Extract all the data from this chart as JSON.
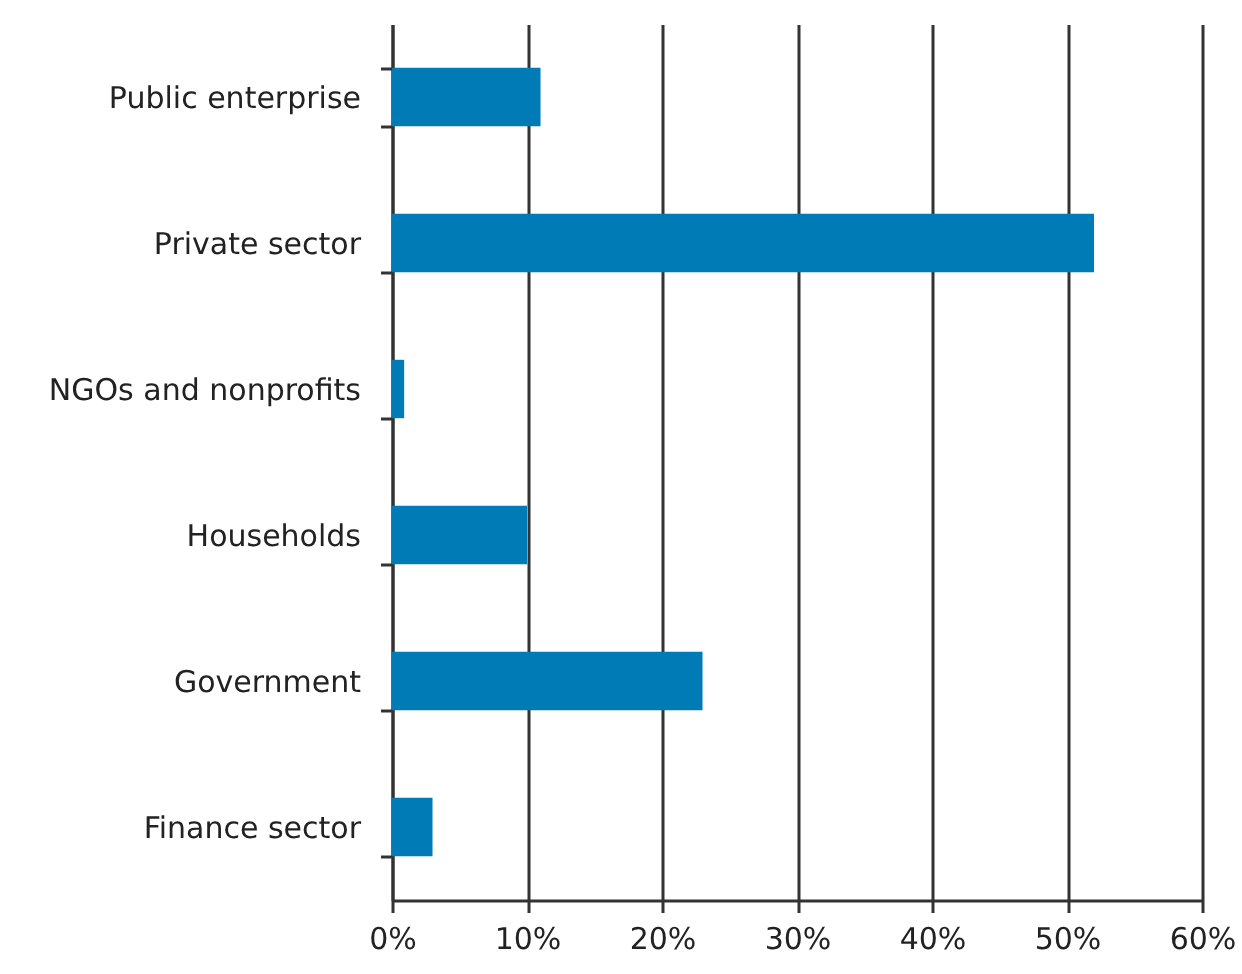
{
  "chart_data": {
    "type": "bar",
    "orientation": "horizontal",
    "categories": [
      "Public enterprise",
      "Private sector",
      "NGOs and nonprofits",
      "Households",
      "Government",
      "Finance sector"
    ],
    "values": [
      11,
      52,
      0.9,
      10,
      23,
      3
    ],
    "color": "#007bb5",
    "xlim": [
      0,
      60
    ],
    "xticks": [
      {
        "value": 0,
        "label": "0%"
      },
      {
        "value": 10,
        "label": "10%"
      },
      {
        "value": 20,
        "label": "20%"
      },
      {
        "value": 30,
        "label": "30%"
      },
      {
        "value": 40,
        "label": "40%"
      },
      {
        "value": 50,
        "label": "50%"
      },
      {
        "value": 60,
        "label": "60%"
      }
    ],
    "grid": "x"
  }
}
